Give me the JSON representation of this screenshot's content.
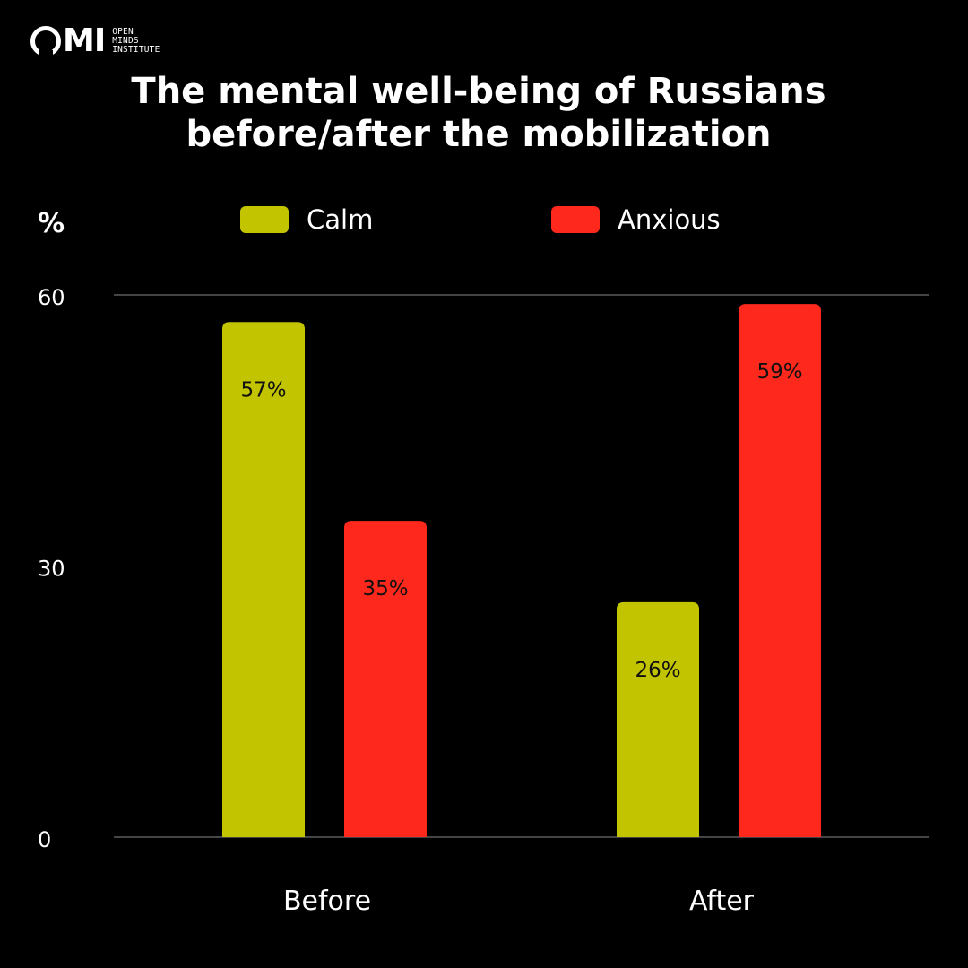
{
  "logo": {
    "mark": "MI",
    "text_lines": [
      "OPEN",
      "MINDS",
      "INSTITUTE"
    ]
  },
  "title_lines": [
    "The mental well-being of Russians",
    "before/after the mobilization"
  ],
  "unit_label": "%",
  "colors": {
    "calm": "#c2c400",
    "anxious": "#ff281c",
    "grid": "#8a8a8a",
    "background": "#000000"
  },
  "chart_data": {
    "type": "bar",
    "title": "The mental well-being of Russians before/after the mobilization",
    "ylabel": "%",
    "categories": [
      "Before",
      "After"
    ],
    "series": [
      {
        "name": "Calm",
        "values": [
          57,
          26
        ],
        "labels": [
          "57%",
          "26%"
        ]
      },
      {
        "name": "Anxious",
        "values": [
          35,
          59
        ],
        "labels": [
          "35%",
          "59%"
        ]
      }
    ],
    "ylim": [
      0,
      60
    ],
    "yticks": [
      "0",
      "30",
      "60"
    ],
    "grid": true,
    "legend": "top"
  }
}
